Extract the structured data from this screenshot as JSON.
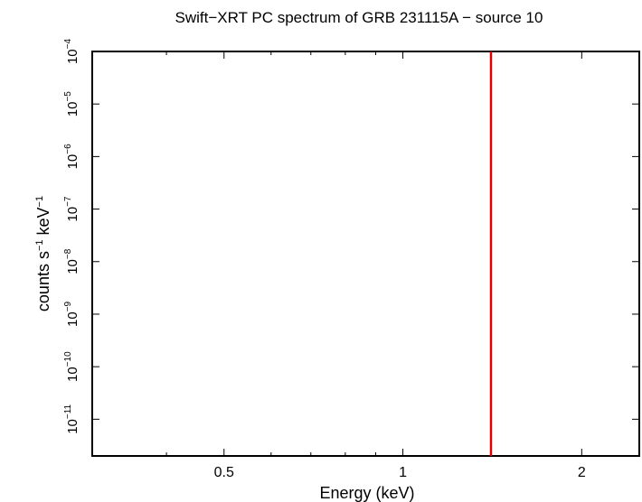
{
  "chart_data": {
    "type": "line",
    "title": "Swift−XRT PC spectrum of GRB 231115A − source 10",
    "xlabel": "Energy (keV)",
    "ylabel": {
      "base": "counts s",
      "sup1": "−1",
      "mid": " keV",
      "sup2": "−1"
    },
    "x_scale": "log",
    "y_scale": "log",
    "xlim": [
      0.3,
      2.5
    ],
    "ylim": [
      2e-12,
      0.0001
    ],
    "x_ticks": [
      {
        "value": 0.5,
        "label": "0.5"
      },
      {
        "value": 1,
        "label": "1"
      },
      {
        "value": 2,
        "label": "2"
      }
    ],
    "x_minor_ticks": [
      0.4,
      0.6,
      0.7,
      0.8,
      0.9
    ],
    "y_ticks": [
      {
        "value": 0.0001,
        "base": "10",
        "exp": "−4"
      },
      {
        "value": 1e-05,
        "base": "10",
        "exp": "−5"
      },
      {
        "value": 1e-06,
        "base": "10",
        "exp": "−6"
      },
      {
        "value": 1e-07,
        "base": "10",
        "exp": "−7"
      },
      {
        "value": 1e-08,
        "base": "10",
        "exp": "−8"
      },
      {
        "value": 1e-09,
        "base": "10",
        "exp": "−9"
      },
      {
        "value": 1e-10,
        "base": "10",
        "exp": "−10"
      },
      {
        "value": 1e-11,
        "base": "10",
        "exp": "−11"
      }
    ],
    "series": [
      {
        "color": "#e00000",
        "points": [
          [
            1.407,
            2e-12
          ],
          [
            1.407,
            0.0001
          ]
        ]
      }
    ],
    "grid": false,
    "legend": "none"
  }
}
